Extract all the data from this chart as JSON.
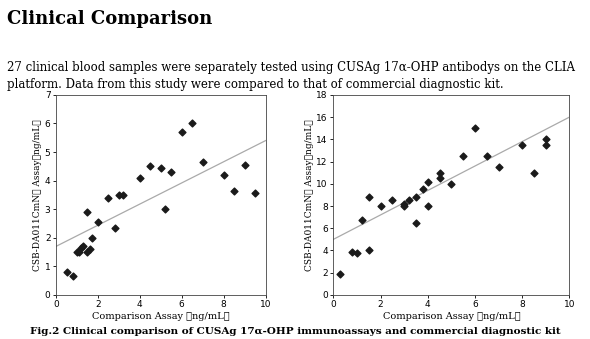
{
  "title": "Clinical Comparison",
  "description": "27 clinical blood samples were separately tested using CUSAg 17α-OHP antibodys on the CLIA\nplatform. Data from this study were compared to that of commercial diagnostic kit.",
  "caption": "Fig.2 Clinical comparison of CUSAg 17α-OHP immunoassays and commercial diagnostic kit",
  "plot1": {
    "xlabel": "Comparison Assay （ng/mL）",
    "ylabel": "CSB-DA011CmN① Assay（ng/mL）",
    "xlim": [
      0,
      10
    ],
    "ylim": [
      0,
      7
    ],
    "xticks": [
      0,
      2,
      4,
      6,
      8,
      10
    ],
    "yticks": [
      0,
      1,
      2,
      3,
      4,
      5,
      6,
      7
    ],
    "scatter_x": [
      0.5,
      0.8,
      1.0,
      1.1,
      1.2,
      1.3,
      1.5,
      1.5,
      1.6,
      1.7,
      2.0,
      2.5,
      2.8,
      3.0,
      3.2,
      4.0,
      4.5,
      5.0,
      5.2,
      5.5,
      6.0,
      6.5,
      7.0,
      8.0,
      8.5,
      9.0,
      9.5
    ],
    "scatter_y": [
      0.8,
      0.65,
      1.5,
      1.5,
      1.65,
      1.7,
      2.9,
      1.5,
      1.6,
      2.0,
      2.55,
      3.4,
      2.35,
      3.5,
      3.5,
      4.1,
      4.5,
      4.45,
      3.0,
      4.3,
      5.7,
      6.0,
      4.65,
      4.2,
      3.65,
      4.55,
      3.55
    ],
    "line_x": [
      0,
      10
    ],
    "line_y": [
      1.7,
      5.4
    ]
  },
  "plot2": {
    "xlabel": "Comparison Assay （ng/mL）",
    "ylabel": "CSB-DA011CmN② Assay（ng/mL）",
    "xlim": [
      0,
      10
    ],
    "ylim": [
      0,
      18
    ],
    "xticks": [
      0,
      2,
      4,
      6,
      8,
      10
    ],
    "yticks": [
      0,
      2,
      4,
      6,
      8,
      10,
      12,
      14,
      16,
      18
    ],
    "scatter_x": [
      0.3,
      0.8,
      1.0,
      1.2,
      1.5,
      1.5,
      2.0,
      2.5,
      3.0,
      3.0,
      3.2,
      3.5,
      3.5,
      3.8,
      4.0,
      4.0,
      4.5,
      4.5,
      5.0,
      5.5,
      6.0,
      6.5,
      7.0,
      8.0,
      8.5,
      9.0,
      9.0
    ],
    "scatter_y": [
      1.9,
      3.9,
      3.8,
      6.7,
      8.8,
      4.0,
      8.0,
      8.5,
      8.2,
      8.0,
      8.5,
      8.8,
      6.5,
      9.5,
      8.0,
      10.2,
      11.0,
      10.5,
      10.0,
      12.5,
      15.0,
      12.5,
      11.5,
      13.5,
      11.0,
      14.0,
      13.5
    ],
    "line_x": [
      0,
      10
    ],
    "line_y": [
      5.0,
      16.0
    ]
  },
  "background_color": "#ffffff",
  "scatter_color": "#1a1a1a",
  "line_color": "#aaaaaa",
  "scatter_marker": "D",
  "scatter_size": 12,
  "title_fontsize": 13,
  "text_fontsize": 8.5,
  "axis_label_fontsize": 7,
  "tick_fontsize": 6.5,
  "caption_fontsize": 7.5,
  "ylabel_fontsize": 6.5
}
